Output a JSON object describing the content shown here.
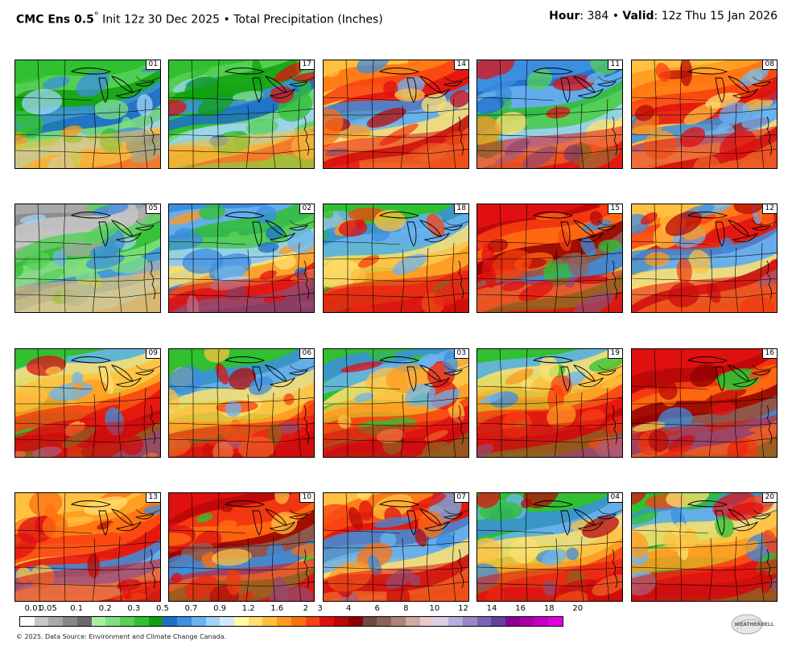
{
  "header": {
    "model": "CMC Ens 0.5",
    "degree": "°",
    "init": " Init 12z 30 Dec 2025 • Total Precipitation (Inches)",
    "hour_label": "Hour",
    "hour_value": ": 384 • ",
    "valid_label": "Valid",
    "valid_value": ": 12z Thu 15 Jan 2026"
  },
  "panels": [
    {
      "label": "01",
      "theme": "green"
    },
    {
      "label": "05",
      "theme": "gray"
    },
    {
      "label": "09",
      "theme": "mixed"
    },
    {
      "label": "13",
      "theme": "red"
    },
    {
      "label": "17",
      "theme": "green"
    },
    {
      "label": "02",
      "theme": "blue"
    },
    {
      "label": "06",
      "theme": "mixed"
    },
    {
      "label": "10",
      "theme": "deepred"
    },
    {
      "label": "14",
      "theme": "red"
    },
    {
      "label": "18",
      "theme": "mixed"
    },
    {
      "label": "03",
      "theme": "mixed"
    },
    {
      "label": "07",
      "theme": "red"
    },
    {
      "label": "11",
      "theme": "blue"
    },
    {
      "label": "15",
      "theme": "deepred"
    },
    {
      "label": "19",
      "theme": "mixed"
    },
    {
      "label": "04",
      "theme": "mixed"
    },
    {
      "label": "08",
      "theme": "red"
    },
    {
      "label": "12",
      "theme": "red"
    },
    {
      "label": "16",
      "theme": "deepred"
    },
    {
      "label": "20",
      "theme": "mixed"
    }
  ],
  "colorbar": {
    "colors": [
      "#ffffff",
      "#c8c8c8",
      "#a8a8a8",
      "#888888",
      "#6a6a6a",
      "#a8f0a0",
      "#80e080",
      "#58d058",
      "#30c030",
      "#10a010",
      "#1e6fc8",
      "#3c8ee0",
      "#6cb4f0",
      "#a0d4f8",
      "#cfeafc",
      "#ffffa0",
      "#ffe070",
      "#ffc040",
      "#ff9a20",
      "#ff7010",
      "#f84010",
      "#e01010",
      "#b80808",
      "#900000",
      "#6e4a40",
      "#8e6458",
      "#b08478",
      "#ceaaa0",
      "#eccac8",
      "#d8d0e8",
      "#b8aedc",
      "#9888c8",
      "#7c64b4",
      "#62409c",
      "#8a0090",
      "#a800a8",
      "#c400c4",
      "#e000e0"
    ],
    "ticks": [
      "0.01",
      "0.05",
      "0.1",
      "0.2",
      "0.3",
      "0.5",
      "0.7",
      "0.9",
      "1.2",
      "1.6",
      "2",
      "3",
      "4",
      "6",
      "8",
      "10",
      "12",
      "14",
      "16",
      "18",
      "20"
    ],
    "tick_index": [
      1,
      2,
      4,
      6,
      8,
      10,
      12,
      14,
      16,
      18,
      20,
      21,
      23,
      25,
      27,
      29,
      31,
      33,
      35,
      37,
      39
    ]
  },
  "footer": "© 2025. Data Source: Environment and Climate Change Canada.",
  "logo_text": "WEATHERBELL"
}
